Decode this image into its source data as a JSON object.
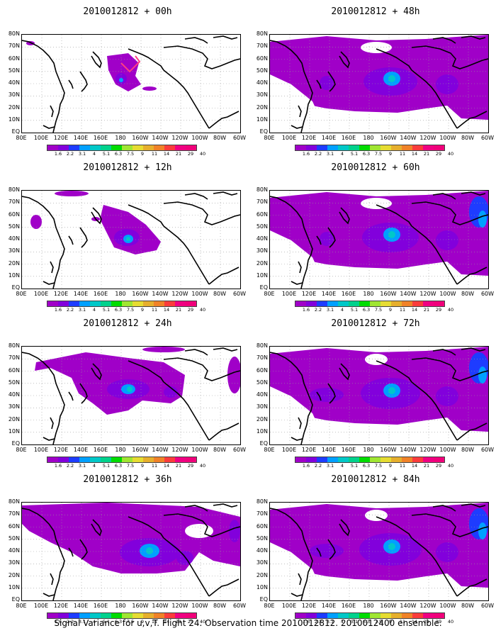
{
  "caption": "Signal Variance for u,v,T. Flight 24. Observation time 2010012812. 2010012400 ensemble.",
  "panels": [
    {
      "title": "2010012812 + 00h",
      "intensity": 0
    },
    {
      "title": "2010012812 + 12h",
      "intensity": 1
    },
    {
      "title": "2010012812 + 24h",
      "intensity": 2
    },
    {
      "title": "2010012812 + 36h",
      "intensity": 3
    },
    {
      "title": "2010012812 + 48h",
      "intensity": 4
    },
    {
      "title": "2010012812 + 60h",
      "intensity": 5
    },
    {
      "title": "2010012812 + 72h",
      "intensity": 6
    },
    {
      "title": "2010012812 + 84h",
      "intensity": 7
    }
  ],
  "lat_labels": [
    "80N",
    "70N",
    "60N",
    "50N",
    "40N",
    "30N",
    "20N",
    "10N",
    "EQ"
  ],
  "lon_labels": [
    "80E",
    "100E",
    "120E",
    "140E",
    "160E",
    "180",
    "160W",
    "140W",
    "120W",
    "100W",
    "80W",
    "60W"
  ],
  "colorbar": {
    "labels": [
      "1.6",
      "2.2",
      "3.1",
      "4",
      "5.1",
      "6.3",
      "7.5",
      "9",
      "11",
      "14",
      "21",
      "29",
      "40"
    ],
    "colors": [
      "#a000c8",
      "#8200dc",
      "#1e3cff",
      "#00a0ff",
      "#00c8c8",
      "#00d28c",
      "#00dc00",
      "#a0e632",
      "#e6dc32",
      "#e6af2d",
      "#f08228",
      "#fa3c3c",
      "#f00082"
    ]
  }
}
